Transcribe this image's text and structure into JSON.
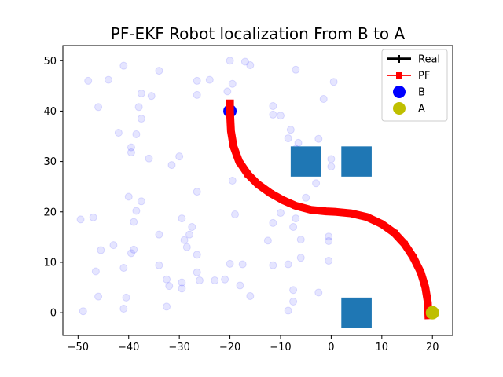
{
  "chart_data": {
    "type": "scatter",
    "title": "PF-EKF Robot localization From B to A",
    "xlabel": "",
    "ylabel": "",
    "xlim": [
      -53,
      24
    ],
    "ylim": [
      -4.5,
      53
    ],
    "xticks": [
      "−50",
      "−40",
      "−30",
      "−20",
      "−10",
      "0",
      "10",
      "20"
    ],
    "xtick_values": [
      -50,
      -40,
      -30,
      -20,
      -10,
      0,
      10,
      20
    ],
    "yticks": [
      "0",
      "10",
      "20",
      "30",
      "40",
      "50"
    ],
    "ytick_values": [
      0,
      10,
      20,
      30,
      40,
      50
    ],
    "grid": false,
    "legend_position": "top-right",
    "legend": [
      {
        "label": "Real",
        "marker": "line-plus",
        "color": "#000000"
      },
      {
        "label": "PF",
        "marker": "line-square",
        "color": "#ff0000"
      },
      {
        "label": "B",
        "marker": "circle",
        "color": "#0000ff"
      },
      {
        "label": "A",
        "marker": "circle",
        "color": "#bfbf00"
      }
    ],
    "colors": {
      "landmarks": "#0000ff",
      "obstacles": "#1f77b4",
      "pf": "#ff0000",
      "real": "#000000",
      "B": "#0000ff",
      "A": "#bfbf00"
    },
    "obstacles": [
      {
        "x0": -8,
        "x1": -2,
        "y0": 27,
        "y1": 33
      },
      {
        "x0": 2,
        "x1": 8,
        "y0": 27,
        "y1": 33
      },
      {
        "x0": 2,
        "x1": 8,
        "y0": -3,
        "y1": 3
      }
    ],
    "point_B": {
      "x": -20,
      "y": 40
    },
    "point_A": {
      "x": 20,
      "y": 0
    },
    "path": [
      {
        "x": -20,
        "y": 41.5
      },
      {
        "x": -20,
        "y": 40
      },
      {
        "x": -19.8,
        "y": 36
      },
      {
        "x": -19.3,
        "y": 33
      },
      {
        "x": -18.2,
        "y": 30
      },
      {
        "x": -16.5,
        "y": 27.5
      },
      {
        "x": -14.5,
        "y": 25.5
      },
      {
        "x": -12,
        "y": 23.7
      },
      {
        "x": -9.5,
        "y": 22.3
      },
      {
        "x": -7,
        "y": 21.2
      },
      {
        "x": -4,
        "y": 20.4
      },
      {
        "x": -1,
        "y": 20.1
      },
      {
        "x": 1,
        "y": 20
      },
      {
        "x": 4,
        "y": 19.7
      },
      {
        "x": 7,
        "y": 19
      },
      {
        "x": 10,
        "y": 17.6
      },
      {
        "x": 12.5,
        "y": 15.8
      },
      {
        "x": 14.5,
        "y": 13.6
      },
      {
        "x": 16.2,
        "y": 11
      },
      {
        "x": 17.7,
        "y": 8
      },
      {
        "x": 18.6,
        "y": 5
      },
      {
        "x": 19.1,
        "y": 2
      },
      {
        "x": 19.2,
        "y": -0.5
      }
    ],
    "landmarks": [
      {
        "x": -48,
        "y": 46
      },
      {
        "x": -44,
        "y": 46.2
      },
      {
        "x": -41,
        "y": 49
      },
      {
        "x": -34,
        "y": 48
      },
      {
        "x": -46,
        "y": 40.8
      },
      {
        "x": -38,
        "y": 40.8
      },
      {
        "x": -37.5,
        "y": 43.5
      },
      {
        "x": -35.5,
        "y": 43
      },
      {
        "x": -37.5,
        "y": 38.5
      },
      {
        "x": -42,
        "y": 35.7
      },
      {
        "x": -38.5,
        "y": 35.4
      },
      {
        "x": -39.5,
        "y": 32.8
      },
      {
        "x": -39.5,
        "y": 31.8
      },
      {
        "x": -36,
        "y": 30.6
      },
      {
        "x": -30,
        "y": 31
      },
      {
        "x": -31.5,
        "y": 29.3
      },
      {
        "x": -26.5,
        "y": 46
      },
      {
        "x": -24,
        "y": 46.2
      },
      {
        "x": -26.5,
        "y": 43.2
      },
      {
        "x": -20,
        "y": 50
      },
      {
        "x": -19.5,
        "y": 45.4
      },
      {
        "x": -20.5,
        "y": 43.9
      },
      {
        "x": -17,
        "y": 49.8
      },
      {
        "x": -16,
        "y": 49.1
      },
      {
        "x": -7,
        "y": 48.2
      },
      {
        "x": 0.5,
        "y": 45.8
      },
      {
        "x": -1.5,
        "y": 42.4
      },
      {
        "x": -11.5,
        "y": 41
      },
      {
        "x": -11.5,
        "y": 39.3
      },
      {
        "x": -10,
        "y": 39.1
      },
      {
        "x": -8,
        "y": 36.3
      },
      {
        "x": -8.5,
        "y": 34.6
      },
      {
        "x": -6.5,
        "y": 33.7
      },
      {
        "x": -7,
        "y": 32.5
      },
      {
        "x": -2.5,
        "y": 34.5
      },
      {
        "x": 0,
        "y": 30.5
      },
      {
        "x": -3,
        "y": 25.7
      },
      {
        "x": 0,
        "y": 29
      },
      {
        "x": -19.5,
        "y": 26.2
      },
      {
        "x": -26.5,
        "y": 24
      },
      {
        "x": -40,
        "y": 23
      },
      {
        "x": -37.5,
        "y": 22.1
      },
      {
        "x": -38.5,
        "y": 20.2
      },
      {
        "x": -39,
        "y": 18
      },
      {
        "x": -49.5,
        "y": 18.5
      },
      {
        "x": -47,
        "y": 18.9
      },
      {
        "x": -29.5,
        "y": 18.7
      },
      {
        "x": -27.5,
        "y": 17
      },
      {
        "x": -28,
        "y": 15.5
      },
      {
        "x": -29,
        "y": 14.4
      },
      {
        "x": -28.5,
        "y": 13
      },
      {
        "x": -34,
        "y": 15.5
      },
      {
        "x": -43,
        "y": 13.4
      },
      {
        "x": -45.5,
        "y": 12.4
      },
      {
        "x": -39,
        "y": 12.5
      },
      {
        "x": -39.5,
        "y": 11.8
      },
      {
        "x": -41,
        "y": 8.9
      },
      {
        "x": -46.5,
        "y": 8.2
      },
      {
        "x": -26.5,
        "y": 11.5
      },
      {
        "x": -34,
        "y": 9.4
      },
      {
        "x": -20,
        "y": 9.7
      },
      {
        "x": -17.5,
        "y": 9.6
      },
      {
        "x": -26.5,
        "y": 8
      },
      {
        "x": -32.5,
        "y": 6.6
      },
      {
        "x": -32,
        "y": 5.3
      },
      {
        "x": -29.5,
        "y": 6
      },
      {
        "x": -29.5,
        "y": 4.8
      },
      {
        "x": -26,
        "y": 6.4
      },
      {
        "x": -23,
        "y": 6.4
      },
      {
        "x": -21,
        "y": 6.6
      },
      {
        "x": -18,
        "y": 5.4
      },
      {
        "x": -16,
        "y": 3.3
      },
      {
        "x": -46,
        "y": 3.2
      },
      {
        "x": -40.5,
        "y": 3
      },
      {
        "x": -41,
        "y": 0.8
      },
      {
        "x": -49,
        "y": 0.3
      },
      {
        "x": -32.5,
        "y": 1.2
      },
      {
        "x": -19,
        "y": 19.5
      },
      {
        "x": -10,
        "y": 19.8
      },
      {
        "x": -7,
        "y": 18.7
      },
      {
        "x": -7.5,
        "y": 17
      },
      {
        "x": -11.5,
        "y": 17.8
      },
      {
        "x": -12.5,
        "y": 14.3
      },
      {
        "x": -6,
        "y": 14.5
      },
      {
        "x": -6,
        "y": 10.9
      },
      {
        "x": -8.5,
        "y": 9.6
      },
      {
        "x": -11.5,
        "y": 9.4
      },
      {
        "x": -5,
        "y": 22.8
      },
      {
        "x": -7.5,
        "y": 4.5
      },
      {
        "x": -7.5,
        "y": 2.2
      },
      {
        "x": -2.5,
        "y": 4
      },
      {
        "x": -8.5,
        "y": 0.4
      },
      {
        "x": -0.5,
        "y": 10.3
      },
      {
        "x": -0.5,
        "y": 14.2
      },
      {
        "x": -0.5,
        "y": 15.1
      }
    ]
  }
}
